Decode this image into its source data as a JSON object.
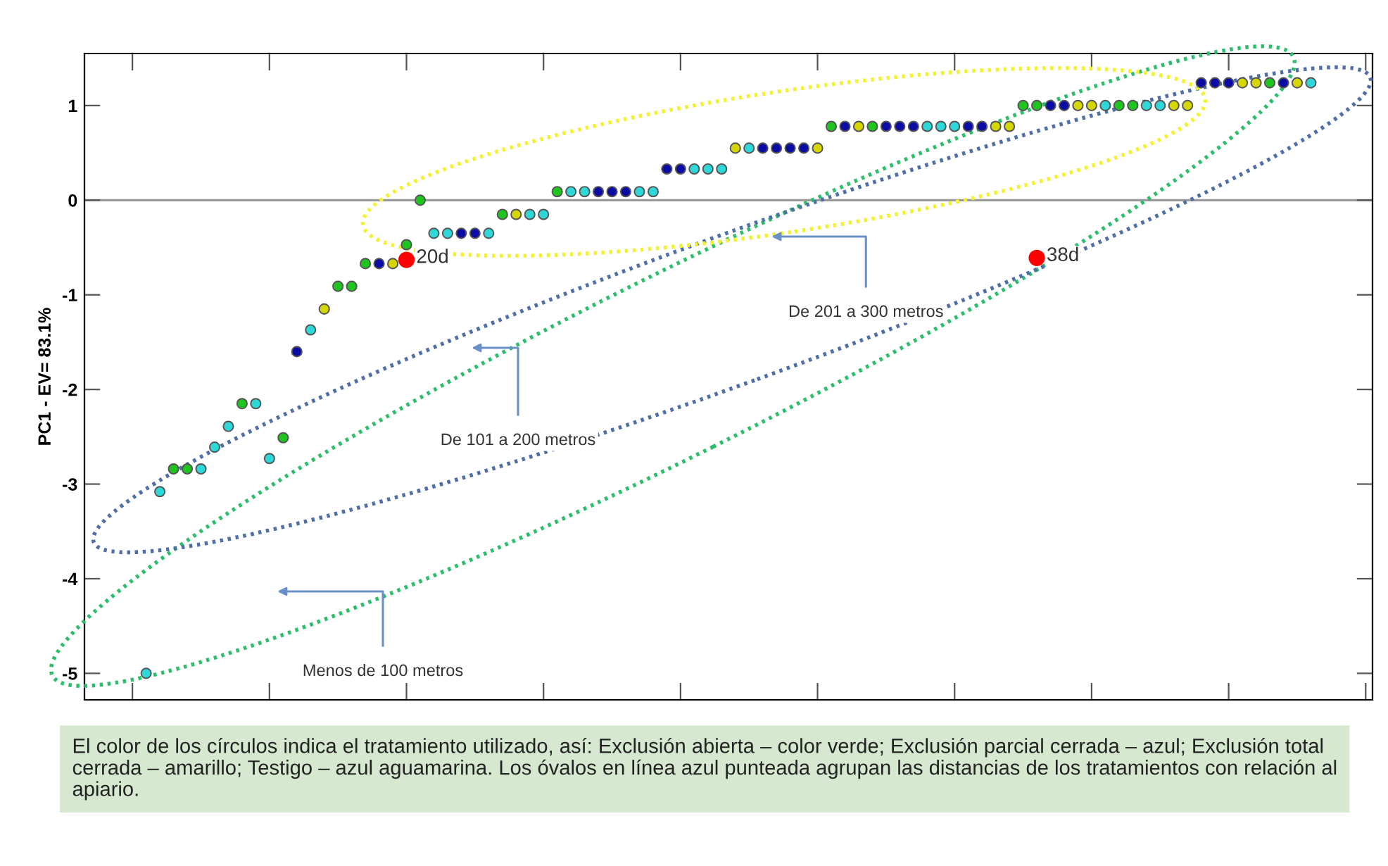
{
  "chart_data": {
    "type": "scatter",
    "ylabel": "PC1 - EV= 83.1%",
    "categories": [
      null,
      null,
      null,
      null,
      null,
      null,
      null,
      null,
      null,
      null,
      null,
      null,
      null,
      null,
      null,
      null,
      null,
      null,
      null,
      null,
      null,
      null,
      null,
      null,
      null,
      null,
      null,
      null,
      null,
      null,
      null,
      null,
      null,
      null,
      null,
      null,
      null,
      null,
      null,
      null,
      null,
      null,
      null,
      null,
      null,
      null,
      null,
      null,
      null,
      null,
      null,
      null,
      null,
      null,
      null,
      null,
      null,
      null,
      null,
      null,
      null,
      null,
      null,
      null,
      null,
      null,
      null,
      null,
      null,
      null,
      null,
      null,
      null,
      null,
      null,
      null,
      null,
      null,
      null,
      null,
      null,
      null,
      null,
      null,
      null,
      null,
      null,
      null,
      null,
      null,
      null,
      null,
      null,
      null
    ],
    "ylim": [
      -5.28,
      1.55
    ],
    "yticks": [
      -5,
      -4,
      -3,
      -2,
      -1,
      0,
      1
    ],
    "tick_labels": "y",
    "marker": "circle",
    "ref_lines": [
      {
        "axis": "y",
        "value": 0,
        "color": "#9a9a9a"
      }
    ],
    "series": [
      {
        "color": "#1fc41f",
        "values": [
          null,
          null,
          null,
          null,
          null,
          null,
          -2.84,
          -2.84,
          null,
          null,
          null,
          -2.15,
          null,
          null,
          -2.51,
          null,
          null,
          null,
          -0.91,
          -0.91,
          -0.67,
          null,
          null,
          -0.47,
          0,
          null,
          null,
          null,
          null,
          null,
          -0.15,
          null,
          null,
          null,
          0.09,
          null,
          null,
          null,
          null,
          null,
          null,
          null,
          null,
          null,
          null,
          null,
          null,
          null,
          null,
          null,
          null,
          null,
          null,
          null,
          0.78,
          null,
          null,
          0.78,
          null,
          null,
          null,
          null,
          null,
          null,
          null,
          null,
          null,
          null,
          1.0,
          1.0,
          null,
          null,
          null,
          null,
          null,
          1.0,
          1.0,
          null,
          null,
          null,
          null,
          null,
          null,
          null,
          null,
          null,
          1.24,
          null,
          null,
          null,
          null,
          null,
          null,
          null
        ]
      },
      {
        "color": "#0b0ba6",
        "values": [
          null,
          null,
          null,
          null,
          null,
          null,
          null,
          null,
          null,
          null,
          null,
          null,
          null,
          null,
          null,
          -1.6,
          null,
          null,
          null,
          null,
          null,
          -0.67,
          null,
          null,
          null,
          null,
          null,
          -0.35,
          -0.35,
          null,
          null,
          null,
          null,
          null,
          null,
          null,
          null,
          0.09,
          0.09,
          0.09,
          null,
          null,
          0.33,
          0.33,
          null,
          null,
          null,
          null,
          null,
          0.55,
          0.55,
          0.55,
          0.55,
          null,
          null,
          0.78,
          null,
          null,
          0.78,
          0.78,
          0.78,
          null,
          null,
          null,
          0.78,
          0.78,
          null,
          null,
          null,
          null,
          1.0,
          1.0,
          null,
          null,
          null,
          null,
          null,
          null,
          null,
          null,
          null,
          1.24,
          1.24,
          1.24,
          null,
          null,
          null,
          1.24,
          null,
          null,
          null,
          null,
          null,
          null
        ]
      },
      {
        "color": "#d6d600",
        "values": [
          null,
          null,
          null,
          null,
          null,
          null,
          null,
          null,
          null,
          null,
          null,
          null,
          null,
          null,
          null,
          null,
          null,
          -1.15,
          null,
          null,
          null,
          null,
          -0.67,
          null,
          null,
          null,
          null,
          null,
          null,
          null,
          null,
          -0.15,
          null,
          null,
          null,
          null,
          null,
          null,
          null,
          null,
          null,
          null,
          null,
          null,
          null,
          null,
          null,
          0.55,
          null,
          null,
          null,
          null,
          null,
          0.55,
          null,
          null,
          0.78,
          null,
          null,
          null,
          null,
          null,
          null,
          null,
          null,
          null,
          0.78,
          0.78,
          null,
          null,
          null,
          null,
          1.0,
          1.0,
          null,
          null,
          null,
          null,
          null,
          1.0,
          1.0,
          null,
          null,
          null,
          1.24,
          1.24,
          null,
          null,
          1.24,
          null,
          null,
          null,
          null,
          null
        ]
      },
      {
        "color": "#2fd8d8",
        "values": [
          null,
          null,
          null,
          null,
          -5.0,
          -3.08,
          null,
          null,
          -2.84,
          -2.61,
          -2.39,
          null,
          -2.15,
          -2.73,
          null,
          null,
          -1.37,
          null,
          null,
          null,
          null,
          null,
          null,
          null,
          null,
          -0.35,
          -0.35,
          null,
          null,
          -0.35,
          null,
          null,
          -0.15,
          -0.15,
          null,
          0.09,
          0.09,
          null,
          null,
          null,
          0.09,
          0.09,
          null,
          null,
          0.33,
          0.33,
          0.33,
          null,
          0.55,
          null,
          null,
          null,
          null,
          null,
          null,
          null,
          null,
          null,
          null,
          null,
          null,
          0.78,
          0.78,
          0.78,
          null,
          null,
          null,
          null,
          null,
          null,
          null,
          null,
          null,
          null,
          1.0,
          null,
          null,
          1.0,
          1.0,
          null,
          null,
          null,
          null,
          null,
          null,
          null,
          null,
          null,
          null,
          1.24,
          null,
          null,
          null,
          null
        ]
      },
      {
        "color": "#ff0000",
        "values": [
          null,
          null,
          null,
          null,
          null,
          null,
          null,
          null,
          null,
          null,
          null,
          null,
          null,
          null,
          null,
          null,
          null,
          null,
          null,
          null,
          null,
          null,
          null,
          -0.63,
          null,
          null,
          null,
          null,
          null,
          null,
          null,
          null,
          null,
          null,
          null,
          null,
          null,
          null,
          null,
          null,
          null,
          null,
          null,
          null,
          null,
          null,
          null,
          null,
          null,
          null,
          null,
          null,
          null,
          null,
          null,
          null,
          null,
          null,
          null,
          null,
          null,
          null,
          null,
          null,
          null,
          null,
          null,
          null,
          null,
          -0.61,
          null,
          null,
          null,
          null,
          null,
          null,
          null,
          null,
          null,
          null,
          null,
          null,
          null,
          null,
          null,
          null,
          null,
          null,
          null,
          null,
          null,
          null,
          null,
          null
        ]
      }
    ],
    "annotations": [
      "20d",
      "38d",
      "De 201 a 300 metros",
      "De 101 a 200 metros",
      "Menos de 100 metros",
      "El color de los círculos indica el tratamiento utilizado, así: Exclusión abierta – color verde; Exclusión parcial cerrada – azul; Exclusión total cerrada – amarillo; Testigo – azul aguamarina. Los óvalos en línea azul punteada agrupan las distancias de los tratamientos con relación al apiario."
    ]
  }
}
